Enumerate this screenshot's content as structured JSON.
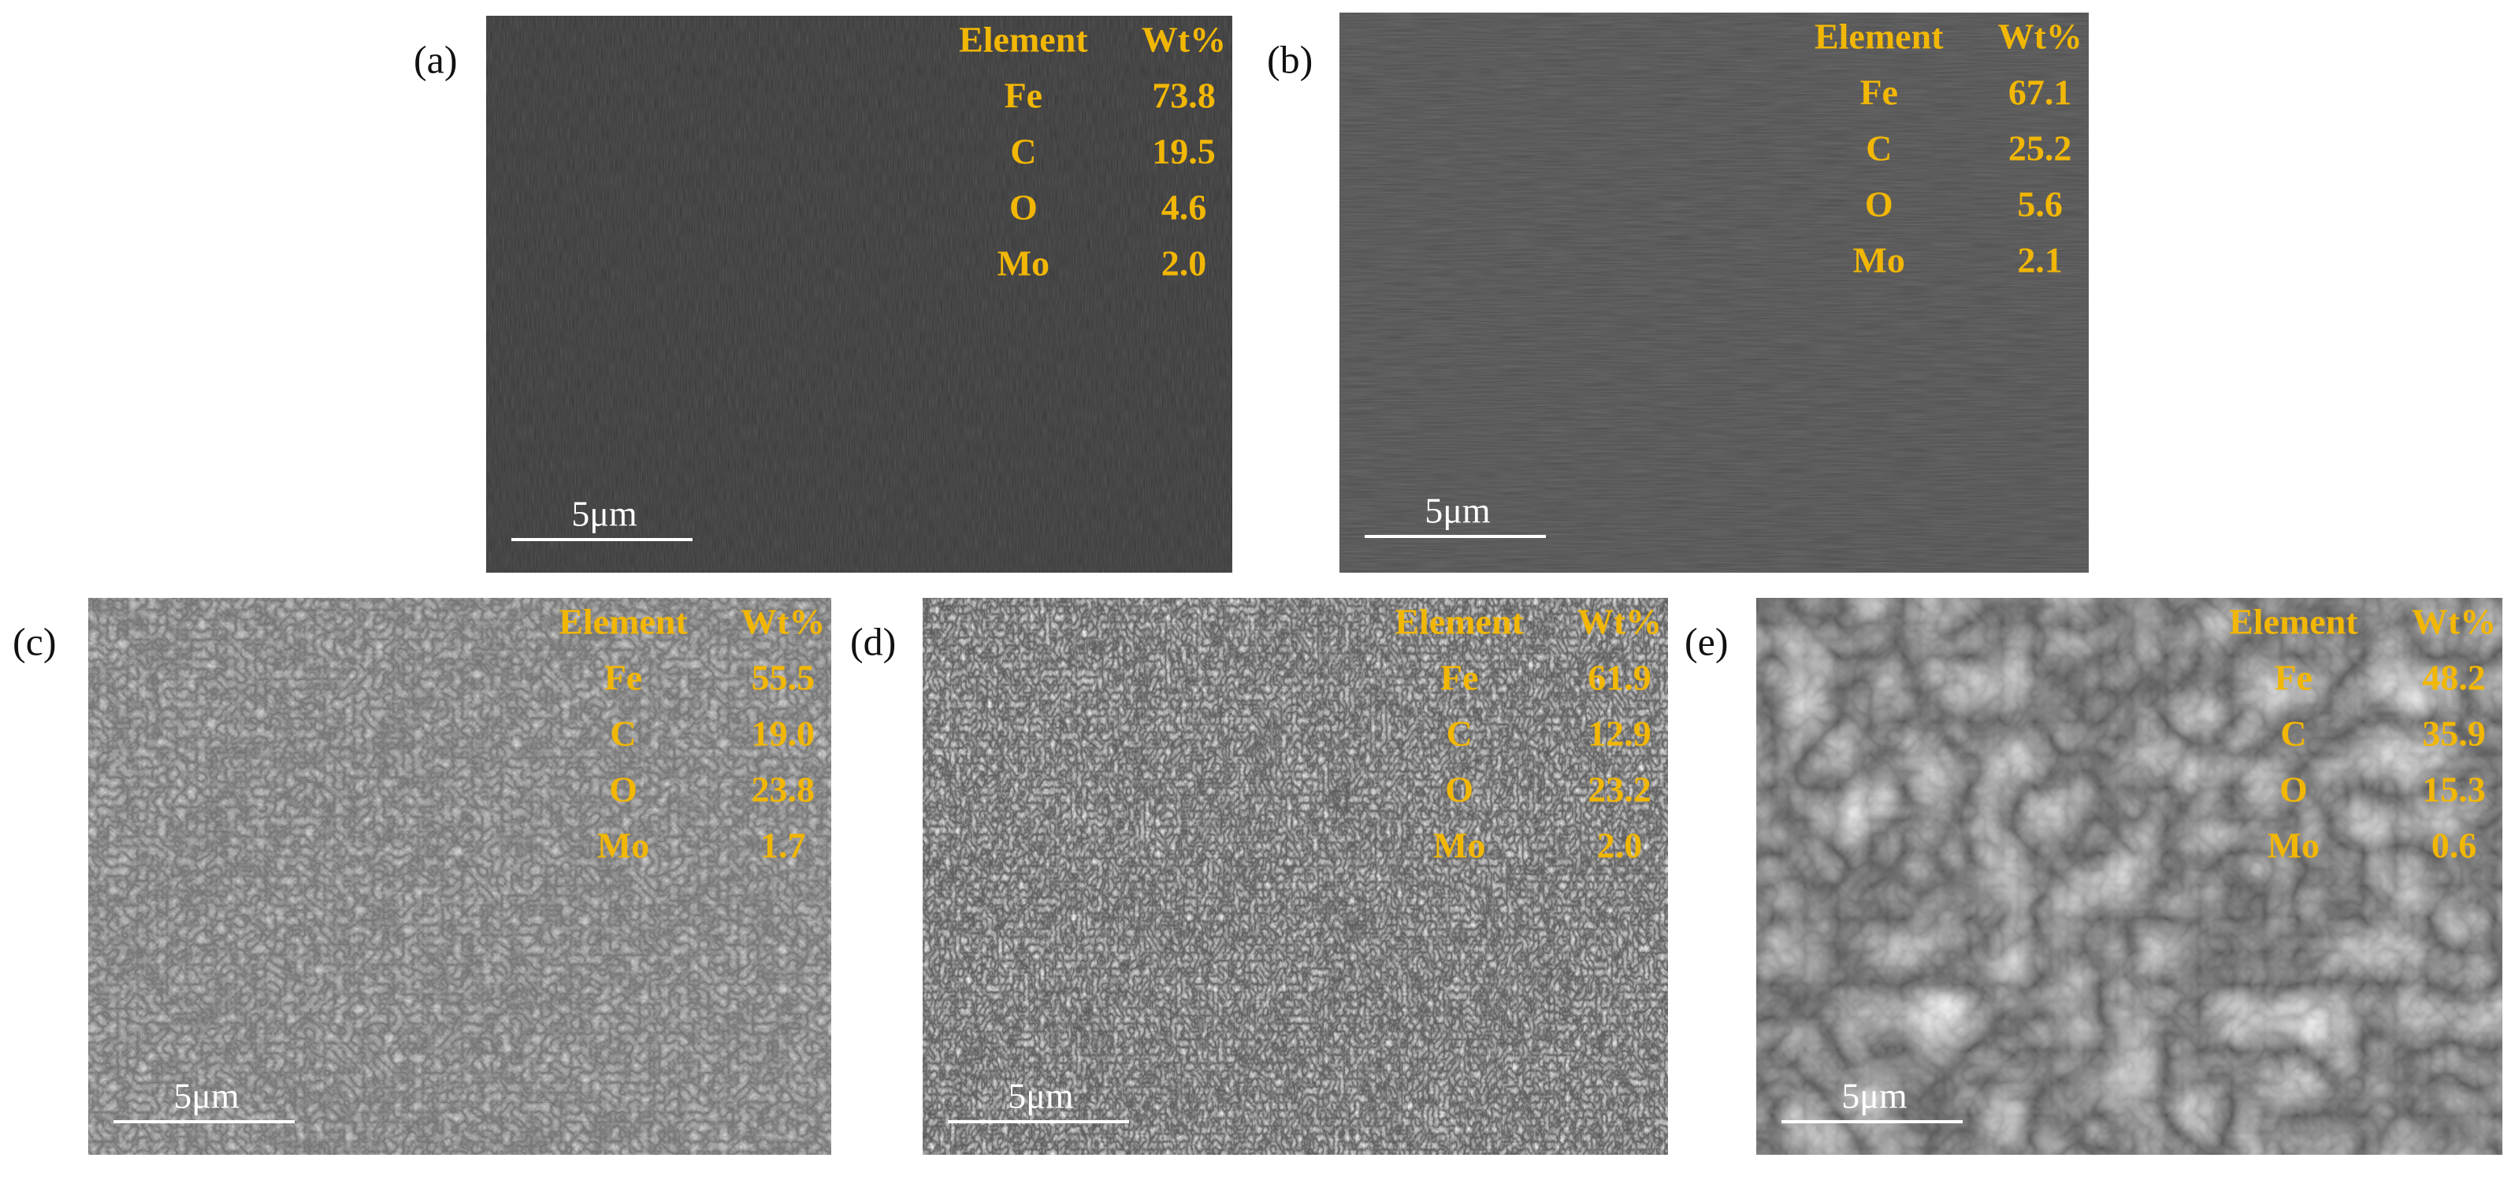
{
  "panels": [
    {
      "label": "(a)",
      "scale_bar": "5μm",
      "table": {
        "header": [
          "Element",
          "Wt%"
        ],
        "rows": [
          [
            "Fe",
            "73.8"
          ],
          [
            "C",
            "19.5"
          ],
          [
            "O",
            "4.6"
          ],
          [
            "Mo",
            "2.0"
          ]
        ]
      }
    },
    {
      "label": "(b)",
      "scale_bar": "5μm",
      "table": {
        "header": [
          "Element",
          "Wt%"
        ],
        "rows": [
          [
            "Fe",
            "67.1"
          ],
          [
            "C",
            "25.2"
          ],
          [
            "O",
            "5.6"
          ],
          [
            "Mo",
            "2.1"
          ]
        ]
      }
    },
    {
      "label": "(c)",
      "scale_bar": "5μm",
      "table": {
        "header": [
          "Element",
          "Wt%"
        ],
        "rows": [
          [
            "Fe",
            "55.5"
          ],
          [
            "C",
            "19.0"
          ],
          [
            "O",
            "23.8"
          ],
          [
            "Mo",
            "1.7"
          ]
        ]
      }
    },
    {
      "label": "(d)",
      "scale_bar": "5μm",
      "table": {
        "header": [
          "Element",
          "Wt%"
        ],
        "rows": [
          [
            "Fe",
            "61.9"
          ],
          [
            "C",
            "12.9"
          ],
          [
            "O",
            "23.2"
          ],
          [
            "Mo",
            "2.0"
          ]
        ]
      }
    },
    {
      "label": "(e)",
      "scale_bar": "5μm",
      "table": {
        "header": [
          "Element",
          "Wt%"
        ],
        "rows": [
          [
            "Fe",
            "48.2"
          ],
          [
            "C",
            "35.9"
          ],
          [
            "O",
            "15.3"
          ],
          [
            "Mo",
            "0.6"
          ]
        ]
      }
    }
  ]
}
